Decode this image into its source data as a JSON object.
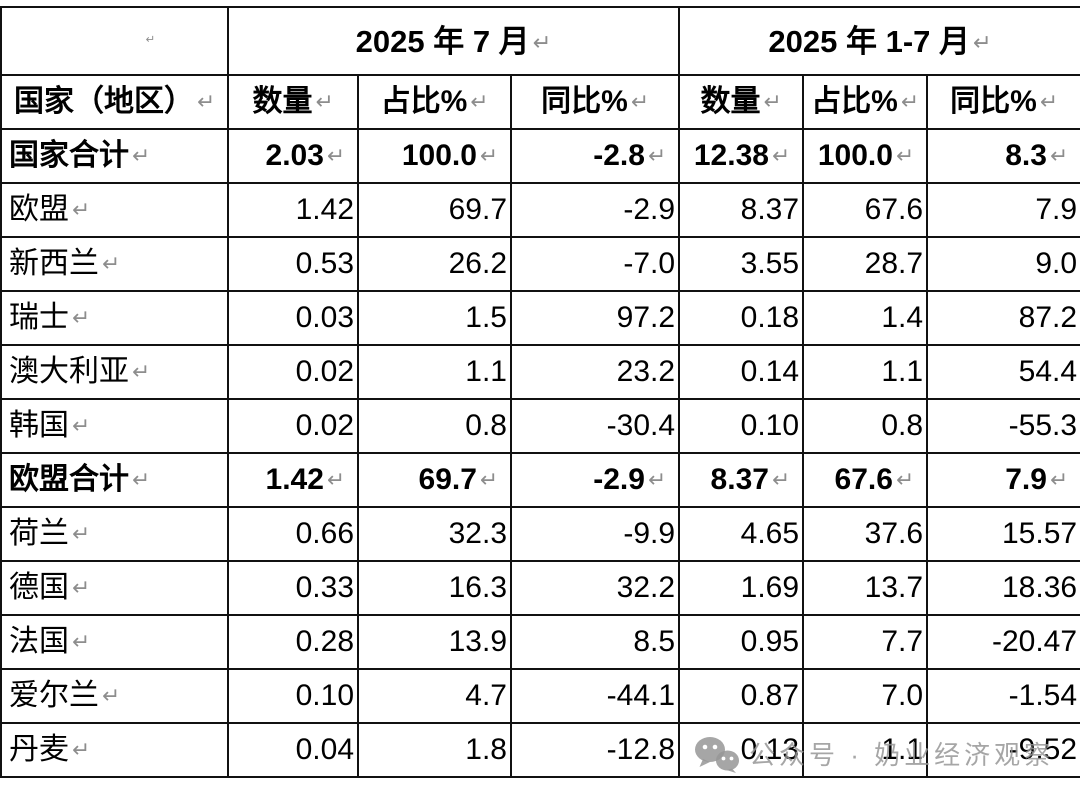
{
  "pilcrow": "↵",
  "colors": {
    "table_border": "#111111",
    "pilcrow_gray": "#8d8d8d",
    "watermark_gray": "#969696"
  },
  "watermark": {
    "icon": "wechat-icon",
    "text": "公众号 · 奶业经济观察"
  },
  "table": {
    "col_groups": [
      {
        "label": "",
        "span": 1
      },
      {
        "label": "2025 年 7 月",
        "span": 3
      },
      {
        "label": "2025 年 1-7 月",
        "span": 3
      }
    ],
    "sub_headers": [
      "国家（地区）",
      "数量",
      "占比%",
      "同比%",
      "数量",
      "占比%",
      "同比%"
    ],
    "rows": [
      {
        "label": "国家合计",
        "bold": true,
        "values": [
          "2.03",
          "100.0",
          "-2.8",
          "12.38",
          "100.0",
          "8.3"
        ]
      },
      {
        "label": "欧盟",
        "bold": false,
        "values": [
          "1.42",
          "69.7",
          "-2.9",
          "8.37",
          "67.6",
          "7.9"
        ]
      },
      {
        "label": "新西兰",
        "bold": false,
        "values": [
          "0.53",
          "26.2",
          "-7.0",
          "3.55",
          "28.7",
          "9.0"
        ]
      },
      {
        "label": "瑞士",
        "bold": false,
        "values": [
          "0.03",
          "1.5",
          "97.2",
          "0.18",
          "1.4",
          "87.2"
        ]
      },
      {
        "label": "澳大利亚",
        "bold": false,
        "values": [
          "0.02",
          "1.1",
          "23.2",
          "0.14",
          "1.1",
          "54.4"
        ]
      },
      {
        "label": "韩国",
        "bold": false,
        "values": [
          "0.02",
          "0.8",
          "-30.4",
          "0.10",
          "0.8",
          "-55.3"
        ]
      },
      {
        "label": "欧盟合计",
        "bold": true,
        "values": [
          "1.42",
          "69.7",
          "-2.9",
          "8.37",
          "67.6",
          "7.9"
        ]
      },
      {
        "label": "荷兰",
        "bold": false,
        "values": [
          "0.66",
          "32.3",
          "-9.9",
          "4.65",
          "37.6",
          "15.57"
        ]
      },
      {
        "label": "德国",
        "bold": false,
        "values": [
          "0.33",
          "16.3",
          "32.2",
          "1.69",
          "13.7",
          "18.36"
        ]
      },
      {
        "label": "法国",
        "bold": false,
        "values": [
          "0.28",
          "13.9",
          "8.5",
          "0.95",
          "7.7",
          "-20.47"
        ]
      },
      {
        "label": "爱尔兰",
        "bold": false,
        "values": [
          "0.10",
          "4.7",
          "-44.1",
          "0.87",
          "7.0",
          "-1.54"
        ]
      },
      {
        "label": "丹麦",
        "bold": false,
        "values": [
          "0.04",
          "1.8",
          "-12.8",
          "0.13",
          "1.1",
          "-9.52"
        ]
      }
    ]
  }
}
